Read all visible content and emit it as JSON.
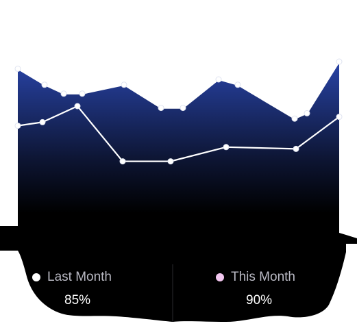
{
  "chart_data": {
    "type": "area",
    "series": [
      {
        "name": "Last Month",
        "values": [
          96,
          87,
          82,
          82,
          87,
          74,
          74,
          90,
          87,
          68,
          71,
          100
        ],
        "percent": "85%",
        "dot_color": "#ffffff"
      },
      {
        "name": "This Month",
        "values": [
          64,
          66,
          75,
          44,
          44,
          52,
          51,
          69
        ],
        "percent": "90%",
        "dot_color": "#f2c6ef"
      }
    ],
    "ylim": [
      0,
      100
    ],
    "grid": false,
    "legend_position": "bottom"
  },
  "colors": {
    "area_top": "#2843a6",
    "area_bottom": "#000000",
    "line": "#ffffff",
    "background": "#000000"
  }
}
